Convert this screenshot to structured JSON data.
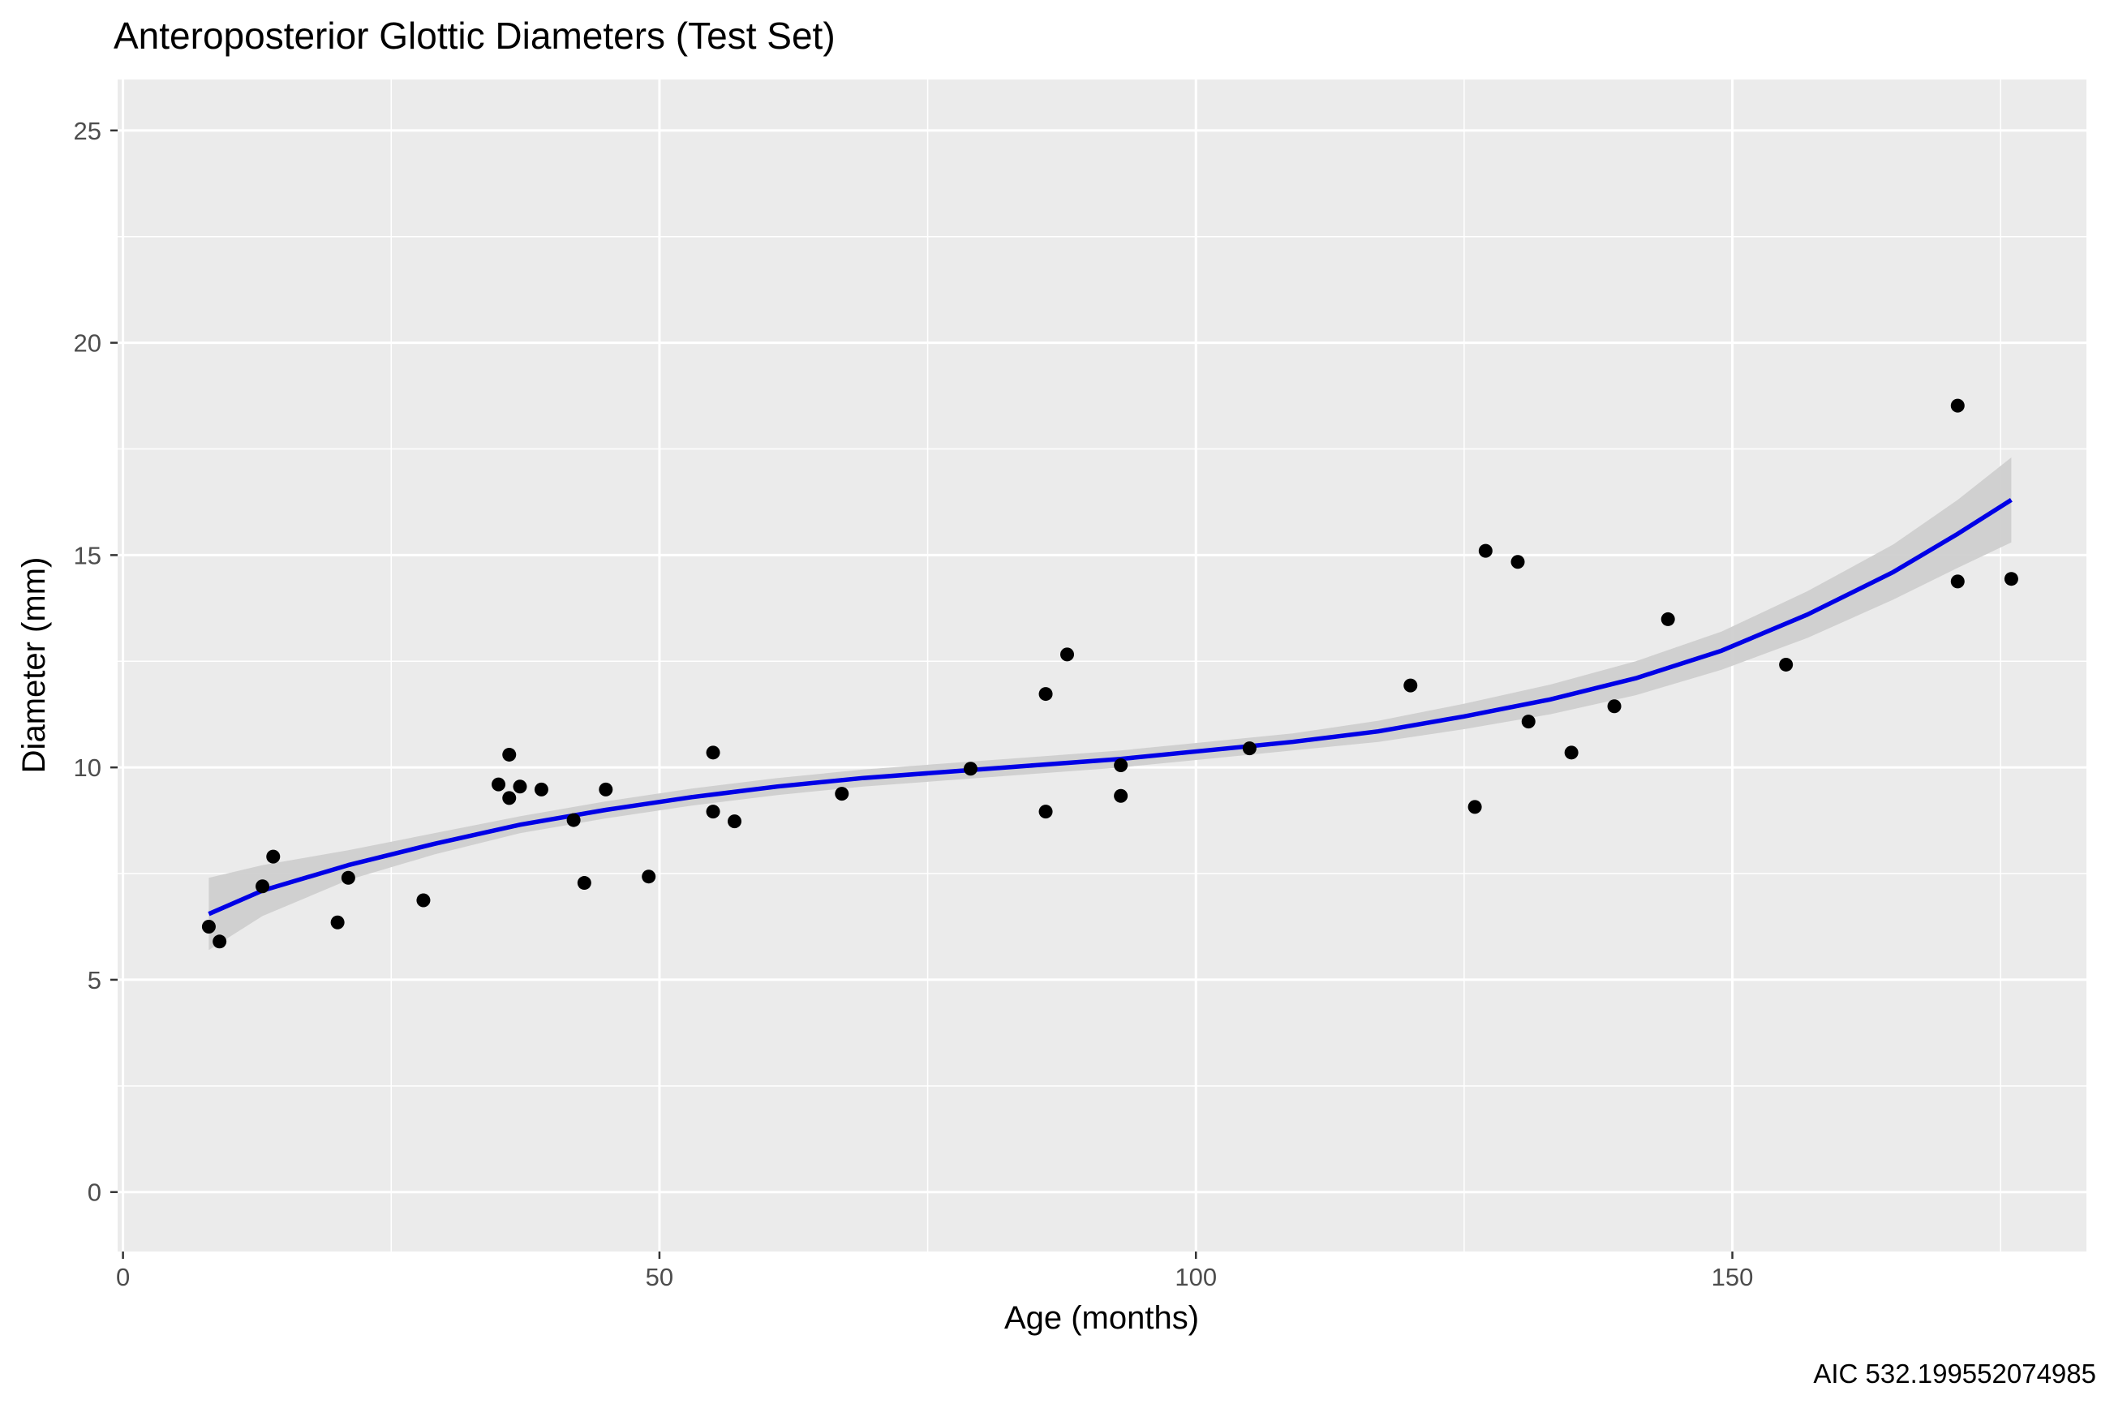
{
  "chart_data": {
    "type": "scatter",
    "title": "Anteroposterior Glottic Diameters (Test Set)",
    "xlabel": "Age (months)",
    "ylabel": "Diameter (mm)",
    "caption": "AIC 532.199552074985",
    "xlim": [
      -0.5,
      183
    ],
    "ylim": [
      -1.4,
      26.2
    ],
    "x_ticks": [
      0,
      50,
      100,
      150
    ],
    "y_ticks": [
      0,
      5,
      10,
      15,
      20,
      25
    ],
    "x_tick_labels": [
      "0",
      "50",
      "100",
      "150"
    ],
    "y_tick_labels": [
      "0",
      "5",
      "10",
      "15",
      "20",
      "25"
    ],
    "grid": true,
    "colors": {
      "panel": "#ebebeb",
      "grid": "#ffffff",
      "points": "#000000",
      "fit_line": "#0000e6",
      "ribbon": "#cfcfcf"
    },
    "points": {
      "x": [
        8,
        9,
        13,
        14,
        20,
        21,
        28,
        35,
        36,
        36,
        37,
        39,
        42,
        43,
        45,
        49,
        55,
        55,
        57,
        67,
        79,
        86,
        86,
        88,
        93,
        93,
        105,
        120,
        126,
        127,
        130,
        131,
        135,
        139,
        144,
        155,
        171,
        171,
        176
      ],
      "y": [
        6.25,
        5.9,
        7.2,
        7.9,
        6.35,
        7.4,
        6.87,
        9.6,
        10.3,
        9.28,
        9.55,
        9.48,
        8.76,
        7.28,
        9.48,
        7.43,
        10.35,
        8.96,
        8.73,
        9.38,
        9.97,
        11.73,
        8.96,
        12.66,
        10.05,
        9.33,
        10.45,
        11.93,
        9.07,
        15.1,
        14.84,
        11.08,
        10.35,
        11.44,
        13.49,
        12.42,
        18.52,
        14.38,
        14.44
      ]
    },
    "fit": {
      "x": [
        8,
        13,
        21,
        29,
        37,
        45,
        53,
        61,
        69,
        77,
        85,
        93,
        101,
        109,
        117,
        125,
        133,
        141,
        149,
        157,
        165,
        171,
        176
      ],
      "y": [
        6.55,
        7.1,
        7.7,
        8.2,
        8.65,
        9.0,
        9.3,
        9.55,
        9.75,
        9.9,
        10.05,
        10.2,
        10.4,
        10.6,
        10.85,
        11.2,
        11.6,
        12.1,
        12.75,
        13.6,
        14.6,
        15.5,
        16.3
      ],
      "lower": [
        5.7,
        6.5,
        7.35,
        7.95,
        8.45,
        8.8,
        9.1,
        9.35,
        9.55,
        9.7,
        9.85,
        10.0,
        10.2,
        10.4,
        10.6,
        10.9,
        11.25,
        11.7,
        12.3,
        13.05,
        13.95,
        14.7,
        15.3
      ],
      "upper": [
        7.4,
        7.7,
        8.05,
        8.45,
        8.85,
        9.2,
        9.5,
        9.75,
        9.95,
        10.1,
        10.25,
        10.4,
        10.6,
        10.8,
        11.1,
        11.5,
        11.95,
        12.5,
        13.2,
        14.15,
        15.25,
        16.3,
        17.3
      ]
    }
  }
}
